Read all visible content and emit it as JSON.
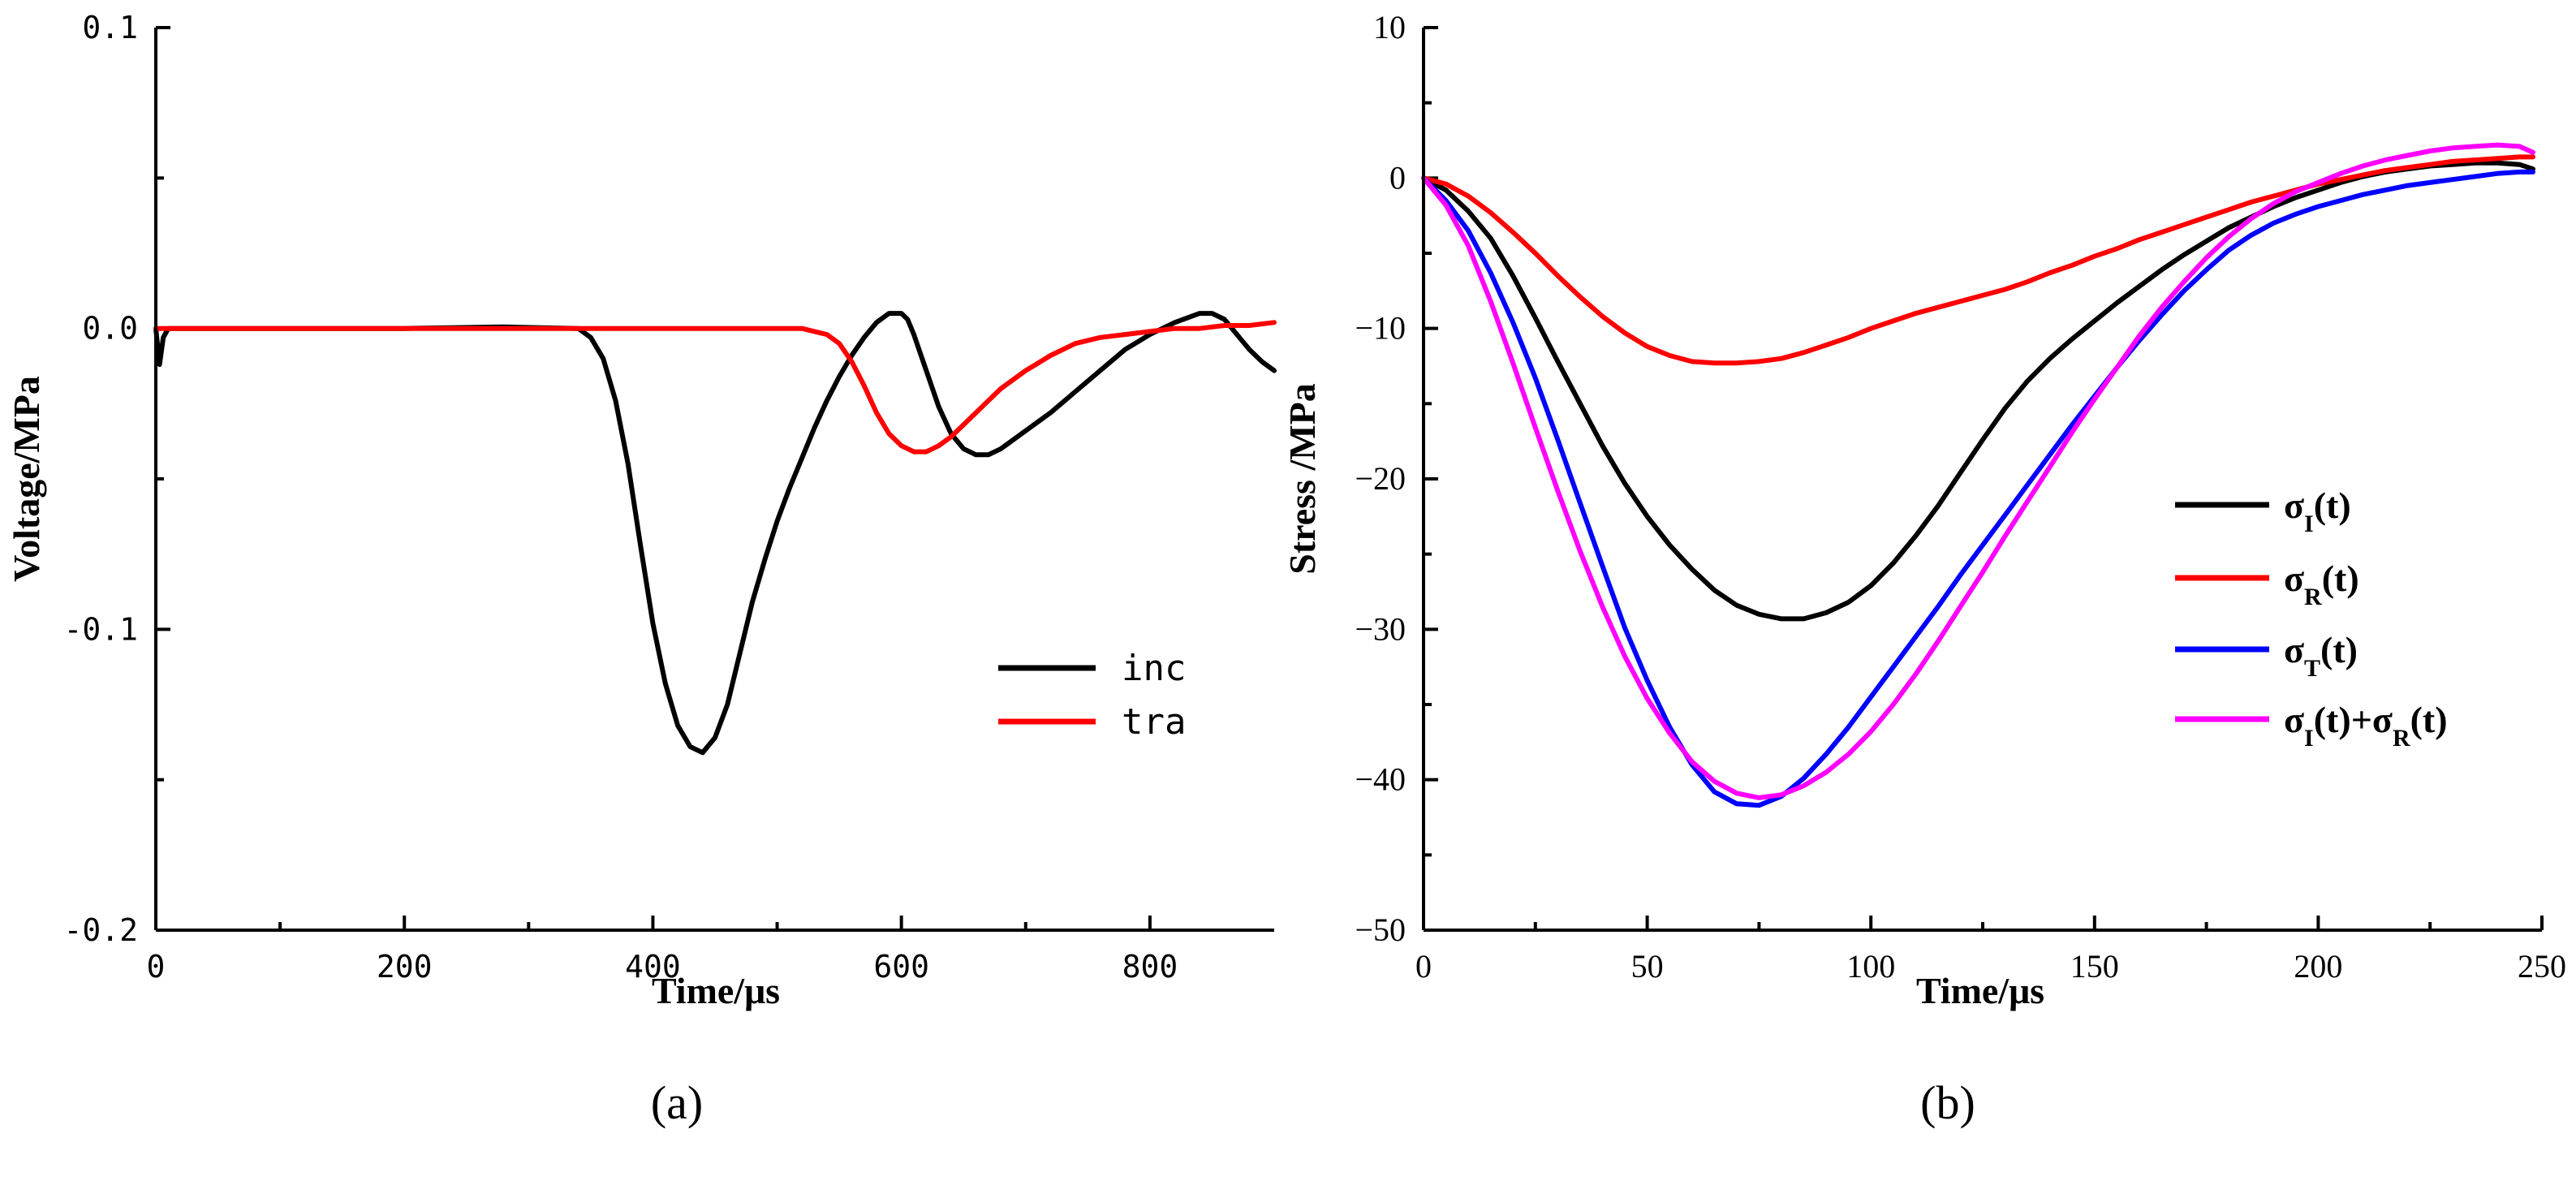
{
  "chart_data": [
    {
      "type": "line",
      "panel_label": "(a)",
      "xlabel": "Time/μs",
      "ylabel": "Voltage/MPa",
      "xlim": [
        0,
        900
      ],
      "ylim": [
        -0.2,
        0.1
      ],
      "x_ticks": [
        0,
        200,
        400,
        600,
        800
      ],
      "x_tick_labels": [
        "0",
        "200",
        "400",
        "600",
        "800"
      ],
      "y_ticks": [
        0.1,
        0.0,
        -0.1,
        -0.2
      ],
      "y_tick_labels": [
        "0.1",
        "0.0",
        "-0.1",
        "-0.2"
      ],
      "legend_position": "lower-right",
      "series": [
        {
          "name": "inc",
          "color": "#000000",
          "x": [
            0,
            3,
            6,
            10,
            100,
            200,
            280,
            340,
            350,
            360,
            370,
            380,
            390,
            400,
            410,
            420,
            430,
            440,
            450,
            460,
            470,
            480,
            490,
            500,
            510,
            520,
            530,
            540,
            550,
            560,
            570,
            580,
            590,
            600,
            605,
            610,
            620,
            630,
            640,
            650,
            660,
            670,
            680,
            690,
            700,
            710,
            720,
            740,
            760,
            780,
            800,
            820,
            840,
            850,
            860,
            870,
            880,
            890,
            900
          ],
          "values": [
            0.0,
            -0.012,
            -0.003,
            0.0,
            0.0,
            0.0,
            0.0005,
            0.0,
            -0.003,
            -0.01,
            -0.024,
            -0.045,
            -0.072,
            -0.098,
            -0.118,
            -0.132,
            -0.139,
            -0.141,
            -0.136,
            -0.125,
            -0.108,
            -0.091,
            -0.077,
            -0.064,
            -0.053,
            -0.043,
            -0.033,
            -0.024,
            -0.016,
            -0.009,
            -0.003,
            0.002,
            0.005,
            0.005,
            0.003,
            -0.002,
            -0.014,
            -0.026,
            -0.035,
            -0.04,
            -0.042,
            -0.042,
            -0.04,
            -0.037,
            -0.034,
            -0.031,
            -0.028,
            -0.021,
            -0.014,
            -0.007,
            -0.002,
            0.002,
            0.005,
            0.005,
            0.003,
            -0.002,
            -0.007,
            -0.011,
            -0.014
          ]
        },
        {
          "name": "tra",
          "color": "#ff0000",
          "x": [
            0,
            100,
            200,
            300,
            400,
            500,
            520,
            530,
            540,
            550,
            560,
            570,
            580,
            590,
            600,
            610,
            620,
            630,
            640,
            650,
            660,
            670,
            680,
            690,
            700,
            720,
            740,
            760,
            780,
            800,
            820,
            840,
            860,
            880,
            900
          ],
          "values": [
            0.0,
            0.0,
            0.0,
            0.0,
            0.0,
            0.0,
            0.0,
            -0.001,
            -0.002,
            -0.005,
            -0.011,
            -0.019,
            -0.028,
            -0.035,
            -0.039,
            -0.041,
            -0.041,
            -0.039,
            -0.036,
            -0.032,
            -0.028,
            -0.024,
            -0.02,
            -0.017,
            -0.014,
            -0.009,
            -0.005,
            -0.003,
            -0.002,
            -0.001,
            0.0,
            0.0,
            0.001,
            0.001,
            0.002
          ]
        }
      ]
    },
    {
      "type": "line",
      "panel_label": "(b)",
      "xlabel": "Time/μs",
      "ylabel": "Stress /MPa",
      "xlim": [
        0,
        250
      ],
      "ylim": [
        -50,
        10
      ],
      "x_ticks": [
        0,
        50,
        100,
        150,
        200,
        250
      ],
      "x_tick_labels": [
        "0",
        "50",
        "100",
        "150",
        "200",
        "250"
      ],
      "y_ticks": [
        10,
        0,
        -10,
        -20,
        -30,
        -40,
        -50
      ],
      "y_tick_labels": [
        "10",
        "0",
        "−10",
        "−20",
        "−30",
        "−40",
        "−50"
      ],
      "legend_position": "right-middle",
      "legend_text": {
        "sigma": "σ",
        "t": "(t)",
        "plus": "+",
        "sub_I": "I",
        "sub_R": "R",
        "sub_T": "T"
      },
      "series": [
        {
          "name": "σI(t)",
          "color": "#000000",
          "x": [
            0,
            5,
            10,
            15,
            20,
            25,
            30,
            35,
            40,
            45,
            50,
            55,
            60,
            65,
            70,
            75,
            80,
            85,
            90,
            95,
            100,
            105,
            110,
            115,
            120,
            125,
            130,
            135,
            140,
            145,
            150,
            155,
            160,
            165,
            170,
            175,
            180,
            185,
            190,
            195,
            200,
            205,
            210,
            215,
            220,
            225,
            230,
            235,
            240,
            245,
            248
          ],
          "values": [
            0,
            -0.8,
            -2.2,
            -4.0,
            -6.5,
            -9.3,
            -12.2,
            -15.0,
            -17.8,
            -20.3,
            -22.5,
            -24.4,
            -26.0,
            -27.4,
            -28.4,
            -29.0,
            -29.3,
            -29.3,
            -28.9,
            -28.2,
            -27.1,
            -25.6,
            -23.8,
            -21.8,
            -19.6,
            -17.4,
            -15.3,
            -13.5,
            -12.0,
            -10.7,
            -9.5,
            -8.3,
            -7.2,
            -6.1,
            -5.1,
            -4.2,
            -3.3,
            -2.6,
            -1.9,
            -1.3,
            -0.8,
            -0.3,
            0.1,
            0.4,
            0.6,
            0.8,
            0.9,
            1.0,
            1.0,
            0.9,
            0.6
          ]
        },
        {
          "name": "σR(t)",
          "color": "#ff0000",
          "x": [
            0,
            5,
            10,
            15,
            20,
            25,
            30,
            35,
            40,
            45,
            50,
            55,
            60,
            65,
            70,
            75,
            80,
            85,
            90,
            95,
            100,
            105,
            110,
            115,
            120,
            125,
            130,
            135,
            140,
            145,
            150,
            155,
            160,
            165,
            170,
            175,
            180,
            185,
            190,
            195,
            200,
            205,
            210,
            215,
            220,
            225,
            230,
            235,
            240,
            245,
            248
          ],
          "values": [
            0,
            -0.4,
            -1.2,
            -2.3,
            -3.6,
            -5.0,
            -6.5,
            -7.9,
            -9.2,
            -10.3,
            -11.2,
            -11.8,
            -12.2,
            -12.3,
            -12.3,
            -12.2,
            -12.0,
            -11.6,
            -11.1,
            -10.6,
            -10.0,
            -9.5,
            -9.0,
            -8.6,
            -8.2,
            -7.8,
            -7.4,
            -6.9,
            -6.3,
            -5.8,
            -5.2,
            -4.7,
            -4.1,
            -3.6,
            -3.1,
            -2.6,
            -2.1,
            -1.6,
            -1.2,
            -0.8,
            -0.4,
            -0.1,
            0.2,
            0.5,
            0.7,
            0.9,
            1.1,
            1.2,
            1.3,
            1.4,
            1.4
          ]
        },
        {
          "name": "σT(t)",
          "color": "#0000ff",
          "x": [
            0,
            5,
            10,
            15,
            20,
            25,
            30,
            35,
            40,
            45,
            50,
            55,
            60,
            65,
            70,
            75,
            80,
            85,
            90,
            95,
            100,
            105,
            110,
            115,
            120,
            125,
            130,
            135,
            140,
            145,
            150,
            155,
            160,
            165,
            170,
            175,
            180,
            185,
            190,
            195,
            200,
            205,
            210,
            215,
            220,
            225,
            230,
            235,
            240,
            245,
            248
          ],
          "values": [
            0,
            -1.5,
            -3.5,
            -6.3,
            -9.6,
            -13.3,
            -17.4,
            -21.6,
            -25.8,
            -29.9,
            -33.4,
            -36.5,
            -39.0,
            -40.8,
            -41.6,
            -41.7,
            -41.1,
            -39.9,
            -38.3,
            -36.5,
            -34.5,
            -32.5,
            -30.5,
            -28.5,
            -26.4,
            -24.4,
            -22.4,
            -20.4,
            -18.4,
            -16.4,
            -14.5,
            -12.6,
            -10.8,
            -9.1,
            -7.5,
            -6.1,
            -4.8,
            -3.8,
            -3.0,
            -2.4,
            -1.9,
            -1.5,
            -1.1,
            -0.8,
            -0.5,
            -0.3,
            -0.1,
            0.1,
            0.3,
            0.4,
            0.4
          ]
        },
        {
          "name": "σI(t)+σR(t)",
          "color": "#ff00ff",
          "x": [
            0,
            5,
            10,
            15,
            20,
            25,
            30,
            35,
            40,
            45,
            50,
            55,
            60,
            65,
            70,
            75,
            80,
            85,
            90,
            95,
            100,
            105,
            110,
            115,
            120,
            125,
            130,
            135,
            140,
            145,
            150,
            155,
            160,
            165,
            170,
            175,
            180,
            185,
            190,
            195,
            200,
            205,
            210,
            215,
            220,
            225,
            230,
            235,
            240,
            245,
            248
          ],
          "values": [
            0,
            -1.8,
            -4.5,
            -8.2,
            -12.3,
            -16.6,
            -20.8,
            -24.8,
            -28.5,
            -31.8,
            -34.6,
            -36.9,
            -38.8,
            -40.1,
            -40.9,
            -41.2,
            -41.0,
            -40.4,
            -39.5,
            -38.3,
            -36.8,
            -35.0,
            -33.0,
            -30.8,
            -28.5,
            -26.2,
            -23.8,
            -21.5,
            -19.2,
            -16.9,
            -14.7,
            -12.6,
            -10.5,
            -8.6,
            -6.9,
            -5.3,
            -3.9,
            -2.7,
            -1.7,
            -0.9,
            -0.3,
            0.3,
            0.8,
            1.2,
            1.5,
            1.8,
            2.0,
            2.1,
            2.2,
            2.1,
            1.7
          ]
        }
      ]
    }
  ]
}
